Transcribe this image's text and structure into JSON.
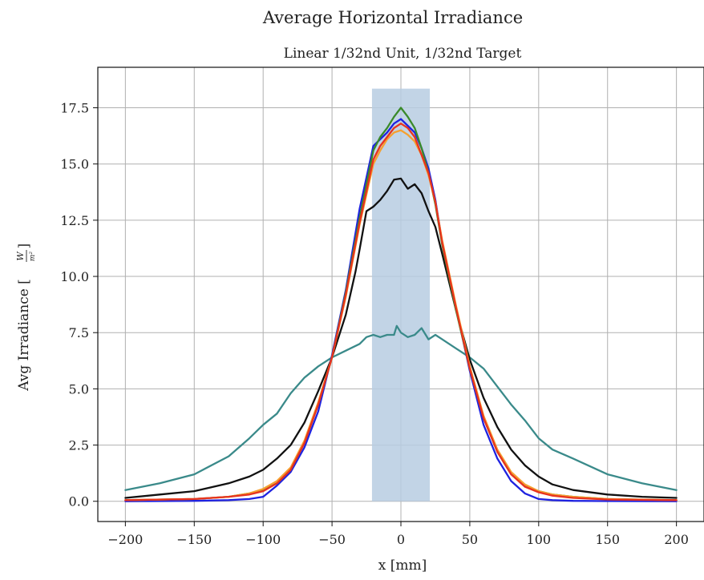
{
  "chart_data": {
    "type": "line",
    "title": "Average Horizontal Irradiance",
    "subtitle": "Linear 1/32nd Unit, 1/32nd Target",
    "xlabel": "x [mm]",
    "ylabel": "Avg Irradiance [W/m²]",
    "ylabel_main": "Avg Irradiance [",
    "ylabel_frac_num": "W",
    "ylabel_frac_den": "m²",
    "ylabel_close": "]",
    "xlim": [
      -220,
      220
    ],
    "ylim": [
      -0.9,
      19.3
    ],
    "grid": true,
    "x_ticks": [
      -200,
      -150,
      -100,
      -50,
      0,
      50,
      100,
      150,
      200
    ],
    "x_tick_labels": [
      "−200",
      "−150",
      "−100",
      "−50",
      "0",
      "50",
      "100",
      "150",
      "200"
    ],
    "y_ticks": [
      0,
      2.5,
      5,
      7.5,
      10,
      12.5,
      15,
      17.5
    ],
    "y_tick_labels": [
      "0.0",
      "2.5",
      "5.0",
      "7.5",
      "10.0",
      "12.5",
      "15.0",
      "17.5"
    ],
    "target_band": {
      "x": [
        -21,
        21
      ],
      "y": [
        0,
        18.35
      ],
      "color": "#b7cde2"
    },
    "series": [
      {
        "color": "#3a8a8a",
        "x": [
          -200,
          -175,
          -150,
          -125,
          -110,
          -100,
          -90,
          -80,
          -70,
          -60,
          -50,
          -40,
          -30,
          -25,
          -20,
          -15,
          -10,
          -5,
          -3,
          0,
          5,
          10,
          15,
          20,
          25,
          30,
          40,
          50,
          60,
          70,
          80,
          90,
          100,
          110,
          125,
          150,
          175,
          200
        ],
        "y": [
          0.5,
          0.8,
          1.2,
          2.0,
          2.8,
          3.4,
          3.9,
          4.8,
          5.5,
          6.0,
          6.4,
          6.7,
          7.0,
          7.3,
          7.4,
          7.3,
          7.4,
          7.4,
          7.8,
          7.5,
          7.3,
          7.4,
          7.7,
          7.2,
          7.4,
          7.2,
          6.8,
          6.4,
          5.9,
          5.1,
          4.3,
          3.6,
          2.8,
          2.3,
          1.9,
          1.2,
          0.8,
          0.5
        ]
      },
      {
        "color": "#111111",
        "x": [
          -200,
          -175,
          -150,
          -125,
          -110,
          -100,
          -90,
          -80,
          -70,
          -60,
          -50,
          -40,
          -33,
          -30,
          -25,
          -20,
          -15,
          -10,
          -5,
          0,
          5,
          10,
          15,
          20,
          25,
          30,
          40,
          50,
          60,
          70,
          80,
          90,
          100,
          110,
          125,
          150,
          175,
          200
        ],
        "y": [
          0.15,
          0.3,
          0.45,
          0.8,
          1.1,
          1.4,
          1.9,
          2.5,
          3.5,
          4.9,
          6.4,
          8.3,
          10.2,
          11.2,
          12.9,
          13.1,
          13.4,
          13.8,
          14.3,
          14.35,
          13.9,
          14.1,
          13.7,
          12.9,
          12.2,
          11.0,
          8.5,
          6.3,
          4.6,
          3.3,
          2.3,
          1.6,
          1.1,
          0.75,
          0.5,
          0.3,
          0.2,
          0.15
        ]
      },
      {
        "color": "#1f22e0",
        "x": [
          -200,
          -150,
          -125,
          -110,
          -100,
          -90,
          -80,
          -70,
          -60,
          -50,
          -40,
          -30,
          -20,
          -15,
          -10,
          -5,
          0,
          5,
          10,
          15,
          20,
          25,
          30,
          40,
          50,
          60,
          70,
          80,
          90,
          100,
          110,
          125,
          150,
          200
        ],
        "y": [
          0.0,
          0.02,
          0.05,
          0.1,
          0.2,
          0.7,
          1.3,
          2.4,
          4.0,
          6.5,
          9.4,
          13.0,
          15.8,
          16.1,
          16.4,
          16.8,
          17.0,
          16.7,
          16.4,
          15.7,
          14.8,
          13.4,
          11.5,
          8.6,
          5.8,
          3.4,
          1.9,
          0.9,
          0.35,
          0.1,
          0.05,
          0.02,
          0.01,
          0.0
        ]
      },
      {
        "color": "#3a8a2a",
        "x": [
          -200,
          -150,
          -125,
          -110,
          -100,
          -90,
          -80,
          -70,
          -60,
          -50,
          -40,
          -30,
          -20,
          -15,
          -10,
          -5,
          0,
          5,
          10,
          15,
          20,
          25,
          30,
          40,
          50,
          60,
          70,
          80,
          90,
          100,
          110,
          125,
          150,
          200
        ],
        "y": [
          0.05,
          0.1,
          0.2,
          0.35,
          0.5,
          0.8,
          1.4,
          2.6,
          4.3,
          6.4,
          9.3,
          12.6,
          15.6,
          16.2,
          16.6,
          17.1,
          17.5,
          17.1,
          16.6,
          15.7,
          14.6,
          13.2,
          11.4,
          8.5,
          5.9,
          3.7,
          2.2,
          1.2,
          0.7,
          0.45,
          0.3,
          0.2,
          0.1,
          0.05
        ]
      },
      {
        "color": "#f5a030",
        "x": [
          -200,
          -150,
          -125,
          -110,
          -100,
          -90,
          -80,
          -70,
          -60,
          -50,
          -40,
          -30,
          -20,
          -15,
          -10,
          -5,
          0,
          5,
          10,
          15,
          20,
          25,
          30,
          40,
          50,
          60,
          70,
          80,
          90,
          100,
          110,
          125,
          150,
          200
        ],
        "y": [
          0.05,
          0.1,
          0.2,
          0.35,
          0.55,
          0.9,
          1.5,
          2.7,
          4.4,
          6.4,
          9.1,
          12.3,
          15.0,
          15.6,
          16.1,
          16.4,
          16.5,
          16.3,
          16.0,
          15.4,
          14.5,
          13.3,
          11.6,
          8.7,
          6.0,
          3.8,
          2.3,
          1.3,
          0.75,
          0.45,
          0.3,
          0.2,
          0.1,
          0.05
        ]
      },
      {
        "color": "#e8331e",
        "x": [
          -200,
          -150,
          -125,
          -110,
          -100,
          -90,
          -80,
          -70,
          -60,
          -50,
          -40,
          -30,
          -20,
          -15,
          -10,
          -5,
          0,
          5,
          10,
          15,
          20,
          25,
          30,
          40,
          50,
          60,
          70,
          80,
          90,
          100,
          110,
          125,
          150,
          200
        ],
        "y": [
          0.05,
          0.1,
          0.2,
          0.3,
          0.45,
          0.8,
          1.4,
          2.6,
          4.3,
          6.4,
          9.2,
          12.4,
          15.2,
          15.8,
          16.2,
          16.6,
          16.8,
          16.6,
          16.2,
          15.4,
          14.6,
          13.3,
          11.5,
          8.6,
          5.9,
          3.7,
          2.2,
          1.2,
          0.65,
          0.4,
          0.25,
          0.15,
          0.08,
          0.05
        ]
      }
    ]
  }
}
